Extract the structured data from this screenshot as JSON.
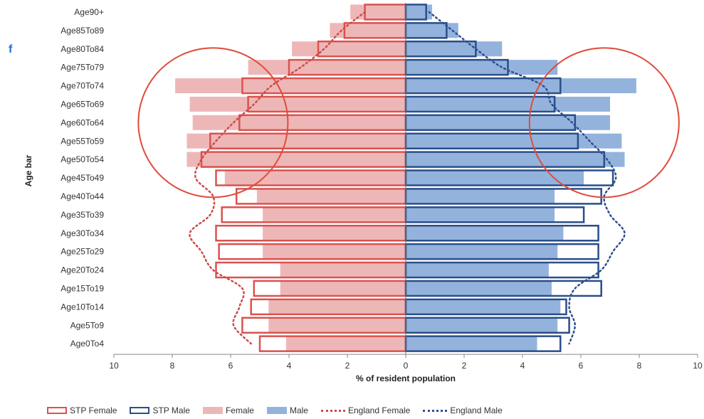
{
  "panel_label": "f",
  "colors": {
    "stp_female": "#d9534f",
    "stp_male": "#2a4e8a",
    "female_fill": "#eeb7b7",
    "male_fill": "#93b3dd",
    "england_female": "#d04a4a",
    "england_male": "#2f4f8f",
    "highlight_circle": "#e04b3a",
    "panel_letter": "#1f6fd6"
  },
  "chart_data": {
    "type": "bar",
    "subtype": "population-pyramid",
    "xlabel": "% of resident population",
    "ylabel": "Age bar",
    "xlim": [
      -10,
      10
    ],
    "xticks": [
      -10,
      -8,
      -6,
      -4,
      -2,
      0,
      2,
      4,
      6,
      8,
      10
    ],
    "xtick_labels": [
      "10",
      "8",
      "6",
      "4",
      "2",
      "0",
      "2",
      "4",
      "6",
      "8",
      "10"
    ],
    "categories": [
      "Age90+",
      "Age85To89",
      "Age80To84",
      "Age75To79",
      "Age70To74",
      "Age65To69",
      "Age60To64",
      "Age55To59",
      "Age50To54",
      "Age45To49",
      "Age40To44",
      "Age35To39",
      "Age30To34",
      "Age25To29",
      "Age20To24",
      "Age15To19",
      "Age10To14",
      "Age5To9",
      "Age0To4"
    ],
    "series": [
      {
        "name": "STP Female",
        "kind": "outline-bar",
        "side": "left",
        "values": [
          1.4,
          2.1,
          3.0,
          4.0,
          5.6,
          5.4,
          5.7,
          6.7,
          7.0,
          6.5,
          5.8,
          6.3,
          6.5,
          6.4,
          6.5,
          5.2,
          5.3,
          5.6,
          5.0
        ]
      },
      {
        "name": "STP Male",
        "kind": "outline-bar",
        "side": "right",
        "values": [
          0.7,
          1.4,
          2.4,
          3.5,
          5.3,
          5.1,
          5.8,
          5.9,
          6.8,
          7.1,
          6.7,
          6.1,
          6.6,
          6.6,
          6.6,
          6.7,
          5.5,
          5.6,
          5.3
        ]
      },
      {
        "name": "Female",
        "kind": "filled-bar",
        "side": "left",
        "values": [
          1.9,
          2.6,
          3.9,
          5.4,
          7.9,
          7.4,
          7.3,
          7.5,
          7.5,
          6.2,
          5.1,
          4.9,
          4.9,
          4.9,
          4.3,
          4.3,
          4.7,
          4.7,
          4.1
        ]
      },
      {
        "name": "Male",
        "kind": "filled-bar",
        "side": "right",
        "values": [
          0.9,
          1.8,
          3.3,
          5.2,
          7.9,
          7.0,
          7.0,
          7.4,
          7.5,
          6.1,
          5.1,
          5.1,
          5.4,
          5.2,
          4.9,
          5.0,
          5.3,
          5.2,
          4.5
        ]
      },
      {
        "name": "England Female",
        "kind": "dotted-line",
        "side": "left",
        "values": [
          1.4,
          2.2,
          2.8,
          3.6,
          4.6,
          5.2,
          5.9,
          6.5,
          7.0,
          7.2,
          6.6,
          6.7,
          7.4,
          7.0,
          6.6,
          5.6,
          5.7,
          5.9,
          5.3
        ]
      },
      {
        "name": "England Male",
        "kind": "dotted-line",
        "side": "right",
        "values": [
          0.8,
          1.6,
          2.4,
          3.3,
          4.7,
          5.0,
          5.7,
          6.3,
          6.9,
          7.2,
          6.8,
          7.0,
          7.5,
          7.1,
          6.7,
          5.8,
          5.6,
          5.8,
          5.6
        ]
      }
    ],
    "legend": {
      "position": "bottom",
      "items": [
        {
          "label": "STP Female",
          "style": "outline",
          "color_key": "stp_female"
        },
        {
          "label": "STP Male",
          "style": "outline",
          "color_key": "stp_male"
        },
        {
          "label": "Female",
          "style": "fill",
          "color_key": "female_fill"
        },
        {
          "label": "Male",
          "style": "fill",
          "color_key": "male_fill"
        },
        {
          "label": "England Female",
          "style": "dotted",
          "color_key": "england_female"
        },
        {
          "label": "England Male",
          "style": "dotted",
          "color_key": "england_male"
        }
      ]
    },
    "annotations": [
      {
        "shape": "circle",
        "highlights": [
          "Age45To49",
          "Age50To54",
          "Age55To59",
          "Age60To64",
          "Age65To69",
          "Age70To74",
          "Age75To79"
        ],
        "side": "left"
      },
      {
        "shape": "circle",
        "highlights": [
          "Age45To49",
          "Age50To54",
          "Age55To59",
          "Age60To64",
          "Age65To69",
          "Age70To74",
          "Age75To79"
        ],
        "side": "right"
      }
    ],
    "grid": false
  }
}
